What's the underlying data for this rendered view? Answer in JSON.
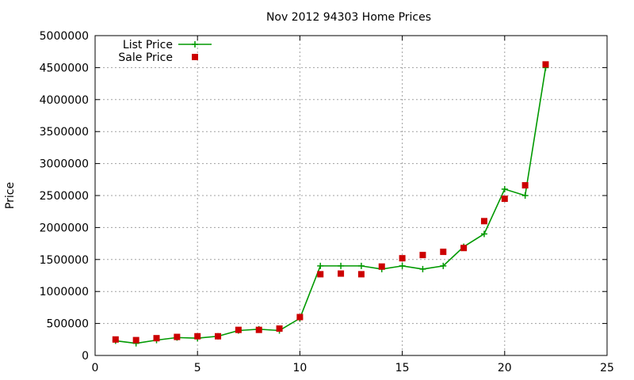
{
  "chart_data": {
    "type": "line",
    "title": "Nov 2012 94303 Home Prices",
    "xlabel": "",
    "ylabel": "Price",
    "xlim": [
      0,
      25
    ],
    "ylim": [
      0,
      5000000
    ],
    "xticks": [
      0,
      5,
      10,
      15,
      20,
      25
    ],
    "xtick_labels": [
      "0",
      "5",
      "10",
      "15",
      "20",
      "25"
    ],
    "yticks": [
      0,
      500000,
      1000000,
      1500000,
      2000000,
      2500000,
      3000000,
      3500000,
      4000000,
      4500000,
      5000000
    ],
    "ytick_labels": [
      "0",
      "500000",
      "1000000",
      "1500000",
      "2000000",
      "2500000",
      "3000000",
      "3500000",
      "4000000",
      "4500000",
      "5000000"
    ],
    "grid": true,
    "legend_position": "top-left",
    "series": [
      {
        "name": "List Price",
        "style": "line+cross",
        "color": "#009900",
        "x": [
          1,
          2,
          3,
          4,
          5,
          6,
          7,
          8,
          9,
          10,
          11,
          12,
          13,
          14,
          15,
          16,
          17,
          18,
          19,
          20,
          21,
          22
        ],
        "y": [
          230000,
          190000,
          240000,
          280000,
          270000,
          300000,
          390000,
          410000,
          390000,
          580000,
          1400000,
          1400000,
          1400000,
          1350000,
          1400000,
          1350000,
          1400000,
          1700000,
          1900000,
          2600000,
          2500000,
          4500000
        ]
      },
      {
        "name": "Sale Price",
        "style": "square-markers",
        "color": "#cc0000",
        "x": [
          1,
          2,
          3,
          4,
          5,
          6,
          7,
          8,
          9,
          10,
          11,
          12,
          13,
          14,
          15,
          16,
          17,
          18,
          19,
          20,
          21,
          22
        ],
        "y": [
          250000,
          240000,
          270000,
          290000,
          300000,
          300000,
          400000,
          400000,
          420000,
          600000,
          1270000,
          1280000,
          1270000,
          1390000,
          1520000,
          1570000,
          1620000,
          1680000,
          2100000,
          2450000,
          2660000,
          4550000
        ]
      }
    ]
  }
}
